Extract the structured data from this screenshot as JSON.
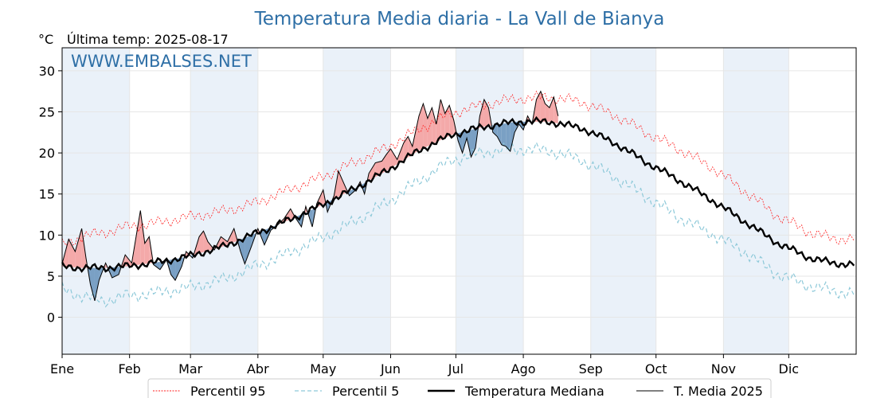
{
  "chart_data": {
    "type": "line",
    "title": "Temperatura Media diaria - La Vall de Bianya",
    "unit_label": "°C",
    "last_temp_label": "Última temp: 2025-08-17",
    "watermark": "WWW.EMBALSES.NET",
    "ylim": [
      -4.5,
      32.8
    ],
    "yticks": [
      0,
      5,
      10,
      15,
      20,
      25,
      30
    ],
    "grid": true,
    "months": [
      "Ene",
      "Feb",
      "Mar",
      "Abr",
      "May",
      "Jun",
      "Jul",
      "Ago",
      "Sep",
      "Oct",
      "Nov",
      "Dic"
    ],
    "month_start_days": [
      1,
      32,
      60,
      91,
      121,
      152,
      182,
      213,
      244,
      274,
      305,
      335
    ],
    "last_day": 229,
    "legend_position": "bottom",
    "colors": {
      "p95": "#ff2020",
      "p5": "#8ec9d9",
      "median": "#000000",
      "current": "#000000",
      "above_fill": "#f4a9a9",
      "below_fill": "#7aa0c4",
      "band": "#eaf1f9",
      "title": "#2e6fa6"
    },
    "series": [
      {
        "name": "Percentil 95",
        "key": "p95",
        "points": [
          [
            1,
            8.8
          ],
          [
            10,
            9.8
          ],
          [
            20,
            10.3
          ],
          [
            31,
            11.0
          ],
          [
            45,
            11.5
          ],
          [
            59,
            12.2
          ],
          [
            75,
            12.9
          ],
          [
            90,
            13.9
          ],
          [
            105,
            15.5
          ],
          [
            120,
            17.0
          ],
          [
            135,
            18.8
          ],
          [
            150,
            20.6
          ],
          [
            165,
            22.9
          ],
          [
            180,
            24.8
          ],
          [
            195,
            25.9
          ],
          [
            210,
            26.6
          ],
          [
            225,
            26.8
          ],
          [
            240,
            26.2
          ],
          [
            255,
            24.6
          ],
          [
            270,
            22.4
          ],
          [
            285,
            20.4
          ],
          [
            300,
            18.2
          ],
          [
            315,
            15.3
          ],
          [
            330,
            12.3
          ],
          [
            345,
            10.3
          ],
          [
            355,
            9.6
          ],
          [
            365,
            9.5
          ]
        ]
      },
      {
        "name": "Percentil 5",
        "key": "p5",
        "points": [
          [
            1,
            3.4
          ],
          [
            10,
            2.6
          ],
          [
            20,
            2.0
          ],
          [
            31,
            2.6
          ],
          [
            45,
            3.0
          ],
          [
            59,
            3.6
          ],
          [
            75,
            4.6
          ],
          [
            90,
            6.2
          ],
          [
            105,
            7.8
          ],
          [
            120,
            9.6
          ],
          [
            135,
            11.6
          ],
          [
            150,
            13.9
          ],
          [
            165,
            16.6
          ],
          [
            180,
            19.1
          ],
          [
            195,
            20.1
          ],
          [
            210,
            20.5
          ],
          [
            225,
            20.3
          ],
          [
            240,
            19.1
          ],
          [
            255,
            17.1
          ],
          [
            270,
            14.6
          ],
          [
            285,
            12.1
          ],
          [
            300,
            10.1
          ],
          [
            315,
            7.9
          ],
          [
            330,
            5.2
          ],
          [
            345,
            3.8
          ],
          [
            355,
            3.2
          ],
          [
            365,
            2.9
          ]
        ]
      },
      {
        "name": "Temperatura Mediana",
        "key": "median",
        "points": [
          [
            1,
            6.2
          ],
          [
            10,
            6.0
          ],
          [
            20,
            6.0
          ],
          [
            31,
            6.2
          ],
          [
            45,
            6.7
          ],
          [
            59,
            7.4
          ],
          [
            75,
            8.6
          ],
          [
            90,
            10.2
          ],
          [
            105,
            11.8
          ],
          [
            120,
            13.6
          ],
          [
            135,
            15.6
          ],
          [
            150,
            17.8
          ],
          [
            165,
            20.3
          ],
          [
            180,
            22.2
          ],
          [
            195,
            23.2
          ],
          [
            210,
            23.8
          ],
          [
            225,
            23.8
          ],
          [
            240,
            23.0
          ],
          [
            255,
            21.2
          ],
          [
            270,
            18.8
          ],
          [
            285,
            16.6
          ],
          [
            300,
            14.2
          ],
          [
            315,
            11.6
          ],
          [
            330,
            9.0
          ],
          [
            345,
            7.2
          ],
          [
            355,
            6.6
          ],
          [
            365,
            6.4
          ]
        ]
      },
      {
        "name": "T. Media 2025",
        "key": "current",
        "points": [
          [
            1,
            6.5
          ],
          [
            4,
            9.5
          ],
          [
            7,
            8.0
          ],
          [
            10,
            10.8
          ],
          [
            12,
            7.2
          ],
          [
            14,
            4.0
          ],
          [
            16,
            2.0
          ],
          [
            18,
            4.5
          ],
          [
            21,
            6.6
          ],
          [
            24,
            4.8
          ],
          [
            27,
            5.2
          ],
          [
            30,
            7.6
          ],
          [
            33,
            6.6
          ],
          [
            37,
            13.0
          ],
          [
            39,
            9.0
          ],
          [
            41,
            9.8
          ],
          [
            43,
            6.4
          ],
          [
            46,
            5.8
          ],
          [
            49,
            7.0
          ],
          [
            51,
            5.2
          ],
          [
            53,
            4.5
          ],
          [
            56,
            6.2
          ],
          [
            58,
            8.0
          ],
          [
            61,
            7.2
          ],
          [
            64,
            9.8
          ],
          [
            66,
            10.5
          ],
          [
            68,
            9.2
          ],
          [
            71,
            8.2
          ],
          [
            74,
            9.8
          ],
          [
            77,
            9.2
          ],
          [
            80,
            10.8
          ],
          [
            83,
            8.0
          ],
          [
            85,
            6.5
          ],
          [
            88,
            8.6
          ],
          [
            91,
            10.8
          ],
          [
            94,
            8.8
          ],
          [
            97,
            10.6
          ],
          [
            100,
            11.2
          ],
          [
            103,
            12.0
          ],
          [
            106,
            13.2
          ],
          [
            108,
            12.2
          ],
          [
            111,
            11.0
          ],
          [
            113,
            13.5
          ],
          [
            116,
            11.0
          ],
          [
            118,
            13.8
          ],
          [
            121,
            15.5
          ],
          [
            123,
            12.8
          ],
          [
            126,
            14.8
          ],
          [
            128,
            17.8
          ],
          [
            131,
            16.0
          ],
          [
            133,
            14.8
          ],
          [
            136,
            15.5
          ],
          [
            138,
            16.5
          ],
          [
            140,
            15.0
          ],
          [
            142,
            17.5
          ],
          [
            145,
            18.8
          ],
          [
            148,
            19.0
          ],
          [
            150,
            19.8
          ],
          [
            152,
            20.5
          ],
          [
            155,
            19.2
          ],
          [
            158,
            21.2
          ],
          [
            160,
            22.0
          ],
          [
            162,
            20.8
          ],
          [
            165,
            24.5
          ],
          [
            167,
            26.0
          ],
          [
            169,
            24.2
          ],
          [
            171,
            25.5
          ],
          [
            173,
            23.5
          ],
          [
            175,
            26.5
          ],
          [
            177,
            24.8
          ],
          [
            179,
            25.8
          ],
          [
            181,
            24.0
          ],
          [
            183,
            21.5
          ],
          [
            185,
            20.0
          ],
          [
            187,
            21.8
          ],
          [
            189,
            19.5
          ],
          [
            191,
            20.6
          ],
          [
            193,
            24.5
          ],
          [
            195,
            26.5
          ],
          [
            197,
            25.5
          ],
          [
            199,
            22.5
          ],
          [
            201,
            22.0
          ],
          [
            203,
            21.0
          ],
          [
            205,
            20.8
          ],
          [
            207,
            20.2
          ],
          [
            209,
            22.5
          ],
          [
            211,
            23.5
          ],
          [
            213,
            22.8
          ],
          [
            215,
            24.5
          ],
          [
            217,
            23.5
          ],
          [
            219,
            26.5
          ],
          [
            221,
            27.5
          ],
          [
            223,
            26.0
          ],
          [
            225,
            25.5
          ],
          [
            227,
            26.8
          ],
          [
            229,
            24.5
          ]
        ]
      }
    ]
  }
}
